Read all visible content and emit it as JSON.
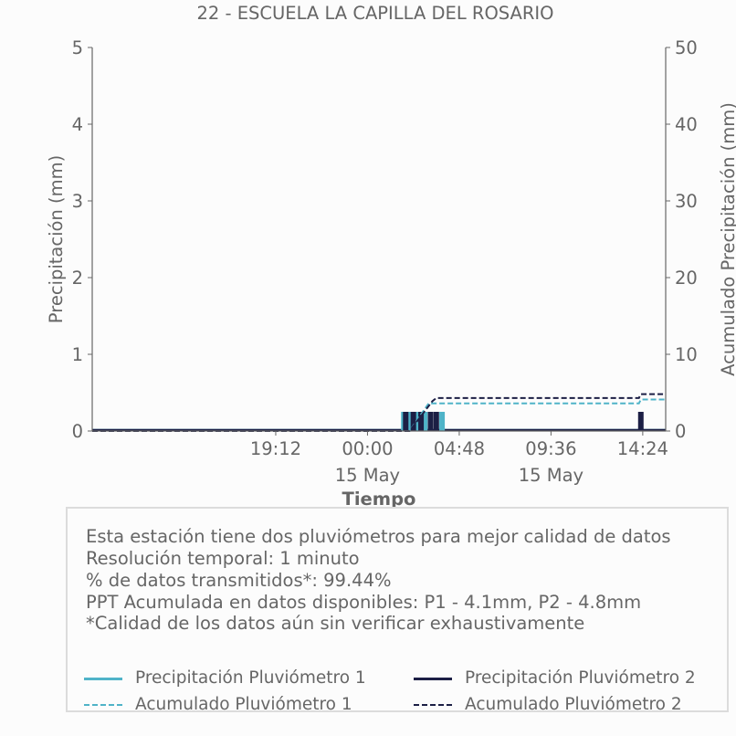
{
  "chart_data": {
    "type": "bar+line",
    "title": "22 - ESCUELA LA CAPILLA DEL ROSARIO",
    "xlabel": "Tiempo",
    "ylabel_left": "Precipitación (mm)",
    "ylabel_right": "Acumulado Precipitación (mm)",
    "ylim_left": [
      0,
      5
    ],
    "ylim_right": [
      0,
      50
    ],
    "yticks_left": [
      "0",
      "1",
      "2",
      "3",
      "4",
      "5"
    ],
    "yticks_right": [
      "0",
      "10",
      "20",
      "30",
      "40",
      "50"
    ],
    "x_range_hours": [
      -14.4,
      15.6
    ],
    "x_ticks": [
      {
        "hour": -4.8,
        "label": "19:12",
        "sublabel": ""
      },
      {
        "hour": 0,
        "label": "00:00",
        "sublabel": "15 May"
      },
      {
        "hour": 4.8,
        "label": "04:48",
        "sublabel": ""
      },
      {
        "hour": 9.6,
        "label": "09:36",
        "sublabel": "15 May"
      },
      {
        "hour": 14.4,
        "label": "14:24",
        "sublabel": ""
      }
    ],
    "grid": false,
    "series": [
      {
        "name": "Precipitación Pluviómetro 1",
        "kind": "bar",
        "color": "#4fb3c8",
        "points": [
          [
            1.9,
            0.25
          ],
          [
            2.25,
            0.25
          ],
          [
            2.6,
            0.25
          ],
          [
            3.0,
            0.25
          ],
          [
            3.9,
            0.25
          ]
        ]
      },
      {
        "name": "Precipitación Pluviómetro 2",
        "kind": "bar",
        "color": "#1c1f45",
        "points": [
          [
            2.0,
            0.25
          ],
          [
            2.4,
            0.25
          ],
          [
            2.8,
            0.25
          ],
          [
            3.3,
            0.25
          ],
          [
            3.6,
            0.25
          ],
          [
            14.3,
            0.25
          ]
        ]
      },
      {
        "name": "Acumulado Pluviómetro 1",
        "kind": "line",
        "dash": true,
        "color": "#4fb3c8",
        "points": [
          [
            -14.4,
            0
          ],
          [
            2.2,
            0
          ],
          [
            3.2,
            3.6
          ],
          [
            14.2,
            3.6
          ],
          [
            14.3,
            4.1
          ],
          [
            15.6,
            4.1
          ]
        ]
      },
      {
        "name": "Acumulado Pluviómetro 2",
        "kind": "line",
        "dash": true,
        "color": "#1c1f45",
        "points": [
          [
            -14.4,
            0
          ],
          [
            2.2,
            0
          ],
          [
            3.4,
            3.9
          ],
          [
            3.6,
            4.3
          ],
          [
            14.2,
            4.3
          ],
          [
            14.3,
            4.8
          ],
          [
            15.6,
            4.8
          ]
        ]
      }
    ]
  },
  "info": {
    "lines": [
      "Esta estación tiene dos pluviómetros para mejor calidad de datos",
      "Resolución temporal: 1 minuto",
      "% de datos transmitidos*: 99.44%",
      "PPT Acumulada en datos disponibles: P1 - 4.1mm, P2 - 4.8mm",
      "*Calidad de los datos aún sin verificar exhaustivamente"
    ]
  },
  "legend": [
    {
      "label": "Precipitación Pluviómetro 1",
      "color": "#4fb3c8",
      "style": "solid"
    },
    {
      "label": "Precipitación Pluviómetro 2",
      "color": "#1c1f45",
      "style": "solid"
    },
    {
      "label": "Acumulado Pluviómetro 1",
      "color": "#4fb3c8",
      "style": "dashed"
    },
    {
      "label": "Acumulado Pluviómetro 2",
      "color": "#1c1f45",
      "style": "dashed"
    }
  ]
}
